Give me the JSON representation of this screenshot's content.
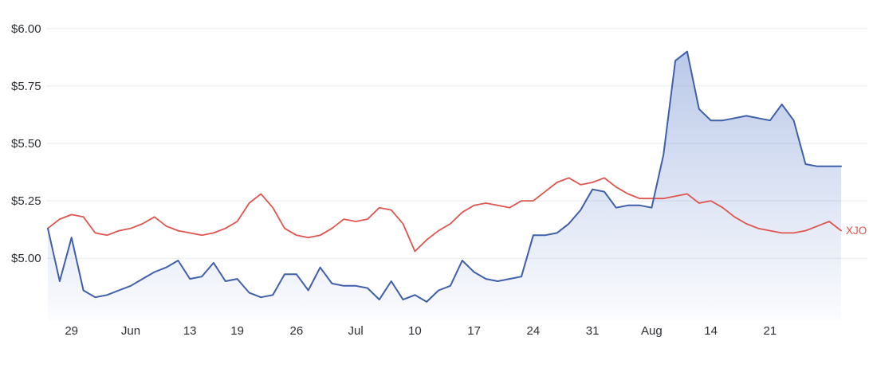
{
  "chart": {
    "background": "#ffffff",
    "grid_color": "#e9eaee",
    "axis_text_color": "#2b2e33"
  },
  "chart_data": {
    "type": "line",
    "title": "",
    "grid": "horizontal",
    "legend": "series-end-label",
    "y_axis": {
      "tick_labels": [
        "$6.00",
        "$5.75",
        "$5.50",
        "$5.25",
        "$5.00"
      ],
      "tick_values": [
        6.0,
        5.75,
        5.5,
        5.25,
        5.0
      ],
      "range": [
        4.73,
        6.055
      ],
      "format": "currency"
    },
    "x_axis": {
      "tick_labels": [
        "29",
        "Jun",
        "13",
        "19",
        "26",
        "Jul",
        "10",
        "17",
        "24",
        "31",
        "Aug",
        "14",
        "21"
      ],
      "tick_indices": [
        2,
        7,
        12,
        16,
        21,
        26,
        31,
        36,
        41,
        46,
        51,
        56,
        61
      ]
    },
    "series": [
      {
        "name": "",
        "end_label": "",
        "color": "#3f5fa9",
        "line_width": 2,
        "area_fill": true,
        "fill_gradient_top": "rgba(119,148,211,0.50)",
        "fill_gradient_bottom": "rgba(119,148,211,0.03)",
        "values": [
          5.13,
          4.9,
          5.09,
          4.86,
          4.83,
          4.84,
          4.86,
          4.88,
          4.91,
          4.94,
          4.96,
          4.99,
          4.91,
          4.92,
          4.98,
          4.9,
          4.91,
          4.85,
          4.83,
          4.84,
          4.93,
          4.93,
          4.86,
          4.96,
          4.89,
          4.88,
          4.88,
          4.87,
          4.82,
          4.9,
          4.82,
          4.84,
          4.81,
          4.86,
          4.88,
          4.99,
          4.94,
          4.91,
          4.9,
          4.91,
          4.92,
          5.1,
          5.1,
          5.11,
          5.15,
          5.21,
          5.3,
          5.29,
          5.22,
          5.23,
          5.23,
          5.22,
          5.45,
          5.86,
          5.9,
          5.65,
          5.6,
          5.6,
          5.61,
          5.62,
          5.61,
          5.6,
          5.67,
          5.6,
          5.41,
          5.4,
          5.4,
          5.4
        ]
      },
      {
        "name": "XJO",
        "end_label": "XJO",
        "color": "#df554e",
        "line_width": 1.8,
        "area_fill": false,
        "values": [
          5.13,
          5.17,
          5.19,
          5.18,
          5.11,
          5.1,
          5.12,
          5.13,
          5.15,
          5.18,
          5.14,
          5.12,
          5.11,
          5.1,
          5.11,
          5.13,
          5.16,
          5.24,
          5.28,
          5.22,
          5.13,
          5.1,
          5.09,
          5.1,
          5.13,
          5.17,
          5.16,
          5.17,
          5.22,
          5.21,
          5.15,
          5.03,
          5.08,
          5.12,
          5.15,
          5.2,
          5.23,
          5.24,
          5.23,
          5.22,
          5.25,
          5.25,
          5.29,
          5.33,
          5.35,
          5.32,
          5.33,
          5.35,
          5.31,
          5.28,
          5.26,
          5.26,
          5.26,
          5.27,
          5.28,
          5.24,
          5.25,
          5.22,
          5.18,
          5.15,
          5.13,
          5.12,
          5.11,
          5.11,
          5.12,
          5.14,
          5.16,
          5.12
        ]
      }
    ]
  }
}
